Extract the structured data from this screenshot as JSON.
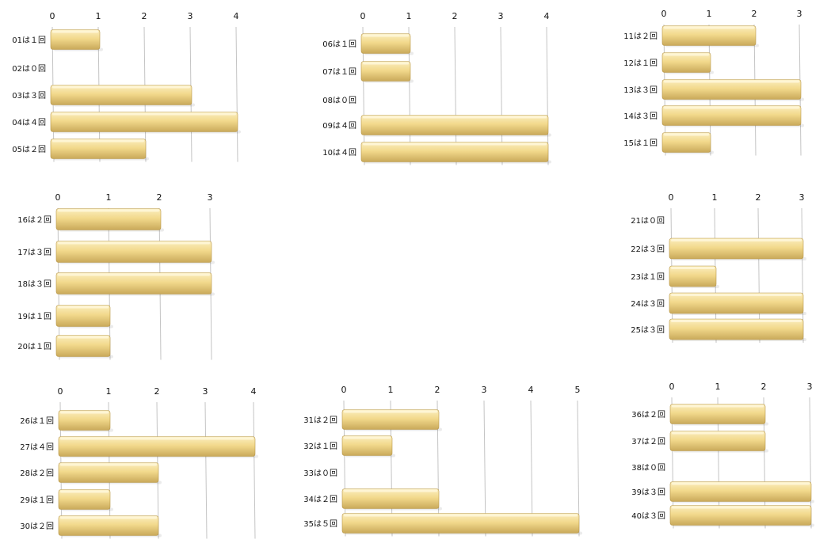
{
  "chart_data": [
    {
      "type": "bar",
      "orientation": "horizontal",
      "categories": [
        "01は１回",
        "02は０回",
        "03は３回",
        "04は４回",
        "05は２回"
      ],
      "values": [
        1,
        0,
        3,
        4,
        2
      ],
      "ticks": [
        0,
        1,
        2,
        3,
        4
      ],
      "xlim": [
        0,
        4
      ],
      "grid": true
    },
    {
      "type": "bar",
      "orientation": "horizontal",
      "categories": [
        "06は１回",
        "07は１回",
        "08は０回",
        "09は４回",
        "10は４回"
      ],
      "values": [
        1,
        1,
        0,
        4,
        4
      ],
      "ticks": [
        0,
        1,
        2,
        3,
        4
      ],
      "xlim": [
        0,
        4
      ],
      "grid": true
    },
    {
      "type": "bar",
      "orientation": "horizontal",
      "categories": [
        "11は２回",
        "12は１回",
        "13は３回",
        "14は３回",
        "15は１回"
      ],
      "values": [
        2,
        1,
        3,
        3,
        1
      ],
      "ticks": [
        0,
        1,
        2,
        3
      ],
      "xlim": [
        0,
        3
      ],
      "grid": true
    },
    {
      "type": "bar",
      "orientation": "horizontal",
      "categories": [
        "16は２回",
        "17は３回",
        "18は３回",
        "19は１回",
        "20は１回"
      ],
      "values": [
        2,
        3,
        3,
        1,
        1
      ],
      "ticks": [
        0,
        1,
        2,
        3
      ],
      "xlim": [
        0,
        3
      ],
      "grid": true
    },
    {
      "type": "bar",
      "orientation": "horizontal",
      "categories": [
        "21は０回",
        "22は３回",
        "23は１回",
        "24は３回",
        "25は３回"
      ],
      "values": [
        0,
        3,
        1,
        3,
        3
      ],
      "ticks": [
        0,
        1,
        2,
        3
      ],
      "xlim": [
        0,
        3
      ],
      "grid": true
    },
    {
      "type": "bar",
      "orientation": "horizontal",
      "categories": [
        "26は１回",
        "27は４回",
        "28は２回",
        "29は１回",
        "30は２回"
      ],
      "values": [
        1,
        4,
        2,
        1,
        2
      ],
      "ticks": [
        0,
        1,
        2,
        3,
        4
      ],
      "xlim": [
        0,
        4
      ],
      "grid": true
    },
    {
      "type": "bar",
      "orientation": "horizontal",
      "categories": [
        "31は２回",
        "32は１回",
        "33は０回",
        "34は２回",
        "35は５回"
      ],
      "values": [
        2,
        1,
        0,
        2,
        5
      ],
      "ticks": [
        0,
        1,
        2,
        3,
        4,
        5
      ],
      "xlim": [
        0,
        5
      ],
      "grid": true
    },
    {
      "type": "bar",
      "orientation": "horizontal",
      "categories": [
        "36は２回",
        "37は２回",
        "38は０回",
        "39は３回",
        "40は３回"
      ],
      "values": [
        2,
        2,
        0,
        3,
        3
      ],
      "ticks": [
        0,
        1,
        2,
        3
      ],
      "xlim": [
        0,
        3
      ],
      "grid": true
    }
  ],
  "colors": {
    "bar_top": "#fbeec0",
    "bar_face": "#f2d98c",
    "bar_bottom": "#c9a95a",
    "grid": "#c4c4c4"
  }
}
